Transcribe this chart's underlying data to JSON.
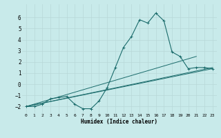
{
  "background_color": "#c8eaea",
  "grid_color": "#b8d8d8",
  "line_color": "#1a6b6b",
  "xlabel": "Humidex (Indice chaleur)",
  "xlim": [
    -0.5,
    23.5
  ],
  "ylim": [
    -2.6,
    7.2
  ],
  "xticks": [
    0,
    1,
    2,
    3,
    4,
    5,
    6,
    7,
    8,
    9,
    10,
    11,
    12,
    13,
    14,
    15,
    16,
    17,
    18,
    19,
    20,
    21,
    22,
    23
  ],
  "yticks": [
    -2,
    -1,
    0,
    1,
    2,
    3,
    4,
    5,
    6
  ],
  "line1_x": [
    0,
    1,
    2,
    3,
    4,
    5,
    6,
    7,
    8,
    9,
    10,
    11,
    12,
    13,
    14,
    15,
    16,
    17,
    18,
    19,
    20,
    21,
    22,
    23
  ],
  "line1_y": [
    -2.0,
    -2.0,
    -1.8,
    -1.3,
    -1.2,
    -1.1,
    -1.8,
    -2.2,
    -2.2,
    -1.5,
    -0.3,
    1.5,
    3.3,
    4.3,
    5.8,
    5.5,
    6.4,
    5.7,
    2.9,
    2.5,
    1.4,
    1.5,
    1.5,
    1.4
  ],
  "line2_x": [
    0,
    23
  ],
  "line2_y": [
    -2.0,
    1.4
  ],
  "line3_x": [
    0,
    23
  ],
  "line3_y": [
    -2.0,
    1.5
  ],
  "line4_x": [
    0,
    21
  ],
  "line4_y": [
    -2.0,
    2.5
  ]
}
